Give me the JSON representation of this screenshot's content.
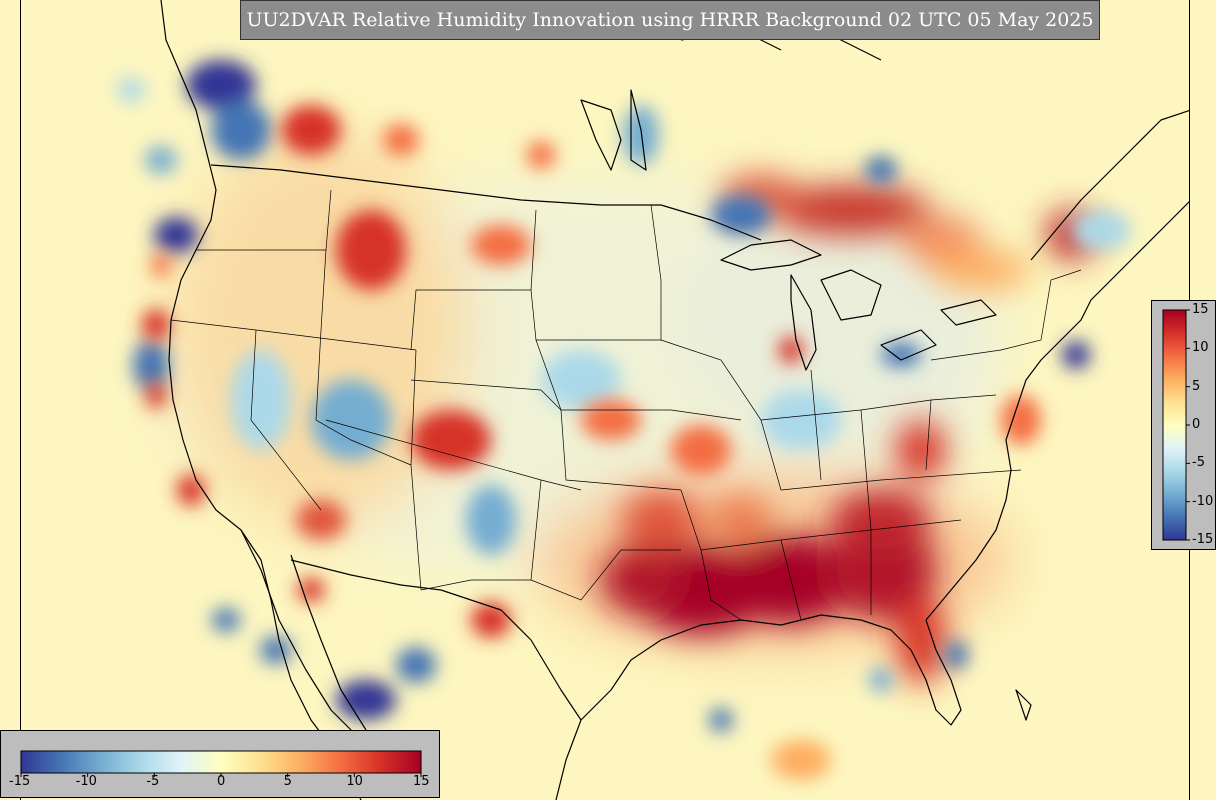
{
  "title": "UU2DVAR Relative Humidity Innovation using HRRR Background 02 UTC 05 May 2025",
  "variable": "Relative Humidity Innovation",
  "colorbar": {
    "min": -15,
    "max": 15,
    "colormap": [
      "#313695",
      "#4575b4",
      "#74add1",
      "#abd9e9",
      "#e0f3f8",
      "#ffffbf",
      "#fee090",
      "#fdae61",
      "#f46d43",
      "#d73027",
      "#a50026"
    ],
    "right_ticks": [
      {
        "value": 15,
        "label": "15"
      },
      {
        "value": 10,
        "label": "10"
      },
      {
        "value": 5,
        "label": "5"
      },
      {
        "value": 0,
        "label": "0"
      },
      {
        "value": -5,
        "label": "-5"
      },
      {
        "value": -10,
        "label": "-10"
      },
      {
        "value": -15,
        "label": "-15"
      }
    ],
    "bottom_ticks": [
      {
        "value": -15,
        "label": "-15"
      },
      {
        "value": -10,
        "label": "-10"
      },
      {
        "value": -5,
        "label": "-5"
      },
      {
        "value": 0,
        "label": "0"
      },
      {
        "value": 5,
        "label": "5"
      },
      {
        "value": 10,
        "label": "10"
      },
      {
        "value": 15,
        "label": "15"
      }
    ]
  },
  "colors": {
    "background_neutral": "#fdf6c0",
    "strong_positive": "#a50026",
    "strong_negative": "#313695",
    "title_box": "#8c8c8c",
    "colorbar_panel": "#bdbdbd"
  }
}
